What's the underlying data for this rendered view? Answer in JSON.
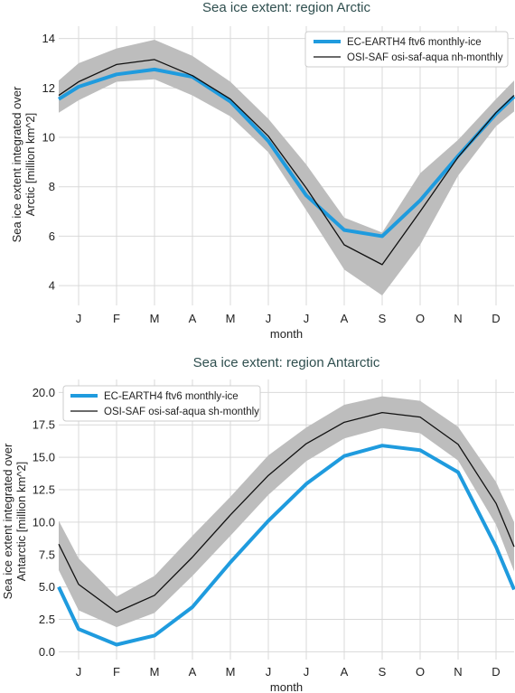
{
  "chart_data": [
    {
      "type": "line",
      "title": "Sea ice extent: region Arctic",
      "xlabel": "month",
      "ylabel_lines": [
        "Sea ice extent integrated over",
        "Arctic [million km^2]"
      ],
      "categories": [
        "J",
        "F",
        "M",
        "A",
        "M",
        "J",
        "J",
        "A",
        "S",
        "O",
        "N",
        "D"
      ],
      "yticks": [
        "4",
        "6",
        "8",
        "10",
        "12",
        "14"
      ],
      "ytick_values": [
        4,
        6,
        8,
        10,
        12,
        14
      ],
      "ylim": [
        3.2,
        14.5
      ],
      "grid": true,
      "legend_position": "top-right",
      "start": {
        "model": 11.55,
        "obs": 11.7,
        "band": [
          11.0,
          12.3
        ]
      },
      "end": {
        "model": 11.65,
        "obs": 11.7,
        "band": [
          11.05,
          12.3
        ]
      },
      "series": [
        {
          "name": "EC-EARTH4 ftv6 monthly-ice",
          "color": "#1f9bde",
          "width": 4,
          "values": [
            12.05,
            12.55,
            12.75,
            12.45,
            11.45,
            9.85,
            7.65,
            6.25,
            6.0,
            7.45,
            9.25,
            10.95
          ]
        },
        {
          "name": "OSI-SAF osi-saf-aqua nh-monthly",
          "color": "#111111",
          "width": 1.3,
          "values": [
            12.25,
            12.95,
            13.15,
            12.5,
            11.55,
            10.05,
            7.95,
            5.65,
            4.85,
            7.0,
            9.2,
            11.0
          ]
        }
      ],
      "band": {
        "color": "#bdbdbd",
        "lower": [
          11.5,
          12.25,
          12.35,
          11.7,
          10.85,
          9.4,
          7.05,
          4.65,
          3.6,
          5.65,
          8.45,
          10.45
        ],
        "upper": [
          13.0,
          13.6,
          13.95,
          13.3,
          12.25,
          10.75,
          8.9,
          6.75,
          6.15,
          8.55,
          9.9,
          11.55
        ]
      }
    },
    {
      "type": "line",
      "title": "Sea ice extent: region Antarctic",
      "xlabel": "month",
      "ylabel_lines": [
        "Sea ice extent integrated over",
        "Antarctic [million km^2]"
      ],
      "categories": [
        "J",
        "F",
        "M",
        "A",
        "M",
        "J",
        "J",
        "A",
        "S",
        "O",
        "N",
        "D"
      ],
      "yticks": [
        "0.0",
        "2.5",
        "5.0",
        "7.5",
        "10.0",
        "12.5",
        "15.0",
        "17.5",
        "20.0"
      ],
      "ytick_values": [
        0,
        2.5,
        5,
        7.5,
        10,
        12.5,
        15,
        17.5,
        20
      ],
      "ylim": [
        -0.6,
        21.0
      ],
      "grid": true,
      "legend_position": "top-left",
      "start": {
        "model": 5.0,
        "obs": 8.3,
        "band": [
          6.3,
          10.1
        ]
      },
      "end": {
        "model": 4.8,
        "obs": 8.1,
        "band": [
          6.2,
          10.0
        ]
      },
      "series": [
        {
          "name": "EC-EARTH4 ftv6 monthly-ice",
          "color": "#1f9bde",
          "width": 4,
          "values": [
            1.75,
            0.55,
            1.25,
            3.45,
            6.9,
            10.1,
            12.95,
            15.1,
            15.9,
            15.55,
            13.85,
            8.1
          ]
        },
        {
          "name": "OSI-SAF osi-saf-aqua sh-monthly",
          "color": "#111111",
          "width": 1.3,
          "values": [
            5.2,
            3.05,
            4.35,
            7.3,
            10.55,
            13.6,
            16.05,
            17.7,
            18.45,
            18.1,
            16.0,
            11.45
          ]
        }
      ],
      "band": {
        "color": "#bdbdbd",
        "lower": [
          3.2,
          1.9,
          3.0,
          5.85,
          8.95,
          12.1,
          14.7,
          16.45,
          17.25,
          16.85,
          14.75,
          9.8
        ]
      },
      "band_upper": [
        7.2,
        4.25,
        5.85,
        8.95,
        11.95,
        15.15,
        17.3,
        19.05,
        19.7,
        19.35,
        17.35,
        13.1
      ]
    }
  ]
}
